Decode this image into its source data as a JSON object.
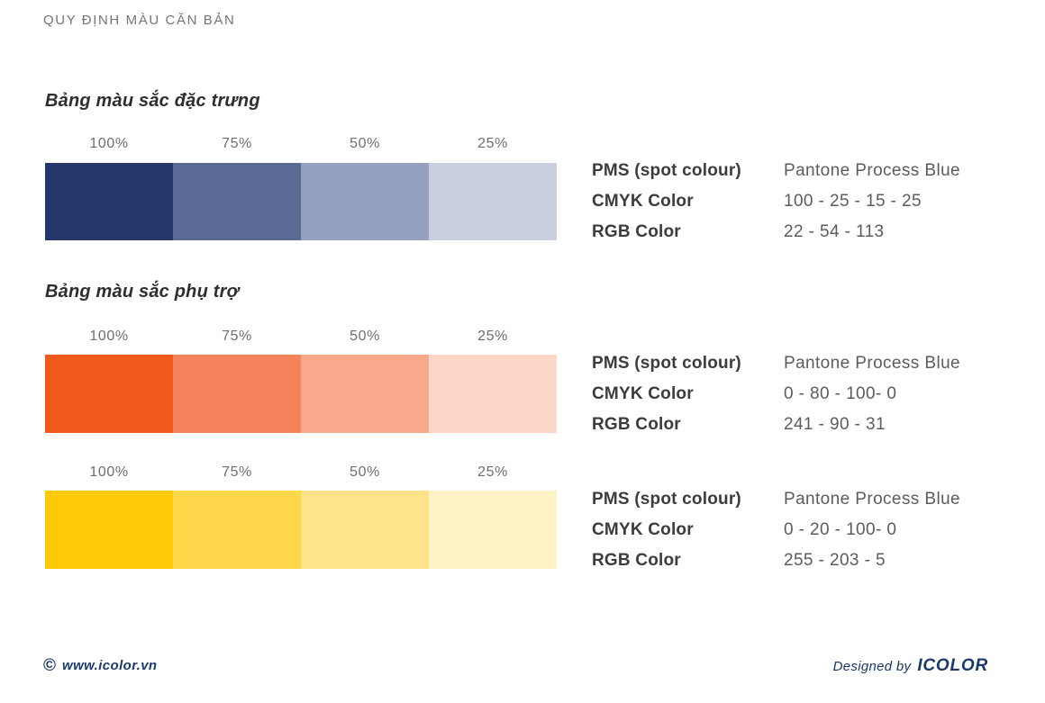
{
  "page": {
    "title": "QUY ĐỊNH MÀU CĂN BẢN"
  },
  "percent_labels": [
    "100%",
    "75%",
    "50%",
    "25%"
  ],
  "spec_labels": {
    "pms": "PMS (spot colour)",
    "cmyk": "CMYK Color",
    "rgb": "RGB Color"
  },
  "sections": [
    {
      "heading": "Bảng màu sắc đặc trưng",
      "rows": [
        {
          "name": "primary-blue",
          "swatches": [
            "#24386B",
            "#5A6B96",
            "#93A0BE",
            "#C9CEDF"
          ],
          "pms": "Pantone Process Blue",
          "cmyk": "100 - 25 - 15 - 25",
          "rgb": "22 - 54 - 113"
        }
      ]
    },
    {
      "heading": "Bảng màu sắc phụ trợ",
      "rows": [
        {
          "name": "secondary-orange",
          "swatches": [
            "#F1591D",
            "#F4835B",
            "#F8A98C",
            "#FBD6C9"
          ],
          "pms": "Pantone Process Blue",
          "cmyk": "0 - 80 - 100- 0",
          "rgb": "241 - 90 - 31"
        },
        {
          "name": "secondary-yellow",
          "swatches": [
            "#FFC908",
            "#FFD74A",
            "#FFE388",
            "#FFF2C6"
          ],
          "pms": "Pantone Process Blue",
          "cmyk": "0 - 20 - 100- 0",
          "rgb": "255 - 203 - 5"
        }
      ]
    }
  ],
  "footer": {
    "copyright": "©",
    "website": "www.icolor.vn",
    "designed_by": "Designed by",
    "brand": "ICOLOR",
    "accent_color": "#1B3A69"
  }
}
